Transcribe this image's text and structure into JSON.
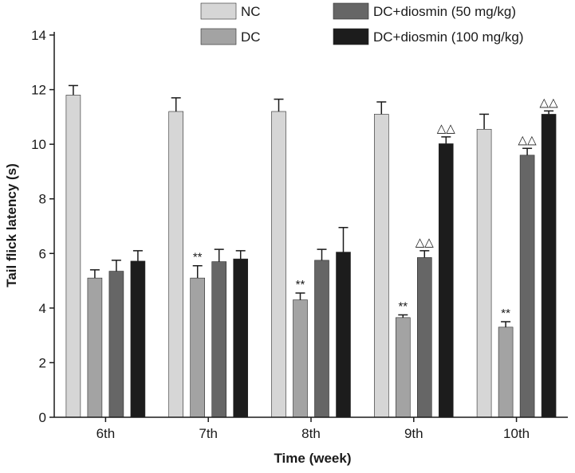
{
  "chart_data": {
    "type": "bar",
    "xlabel": "Time (week)",
    "ylabel": "Tail flick latency (s)",
    "ylim": [
      0,
      14
    ],
    "yticks": [
      0,
      2,
      4,
      6,
      8,
      10,
      12,
      14
    ],
    "grid": false,
    "legend_position": "top",
    "categories": [
      "6th",
      "7th",
      "8th",
      "9th",
      "10th"
    ],
    "series": [
      {
        "name": "NC",
        "color": "#d6d6d6",
        "values": [
          11.8,
          11.2,
          11.2,
          11.1,
          10.55
        ],
        "errors": [
          0.35,
          0.5,
          0.45,
          0.45,
          0.55
        ],
        "annotations": [
          "",
          "",
          "",
          "",
          ""
        ]
      },
      {
        "name": "DC",
        "color": "#a3a3a3",
        "values": [
          5.1,
          5.1,
          4.3,
          3.65,
          3.3
        ],
        "errors": [
          0.3,
          0.45,
          0.25,
          0.1,
          0.2
        ],
        "annotations": [
          "",
          "**",
          "**",
          "**",
          "**"
        ]
      },
      {
        "name": "DC+diosmin (50 mg/kg)",
        "color": "#666666",
        "values": [
          5.35,
          5.7,
          5.75,
          5.85,
          9.6
        ],
        "errors": [
          0.4,
          0.45,
          0.4,
          0.25,
          0.25
        ],
        "annotations": [
          "",
          "",
          "",
          "△△",
          "△△"
        ]
      },
      {
        "name": "DC+diosmin (100 mg/kg)",
        "color": "#1c1c1c",
        "values": [
          5.72,
          5.8,
          6.05,
          10.02,
          11.1
        ],
        "errors": [
          0.38,
          0.3,
          0.9,
          0.25,
          0.12
        ],
        "annotations": [
          "",
          "",
          "",
          "△△",
          "△△"
        ]
      }
    ]
  }
}
